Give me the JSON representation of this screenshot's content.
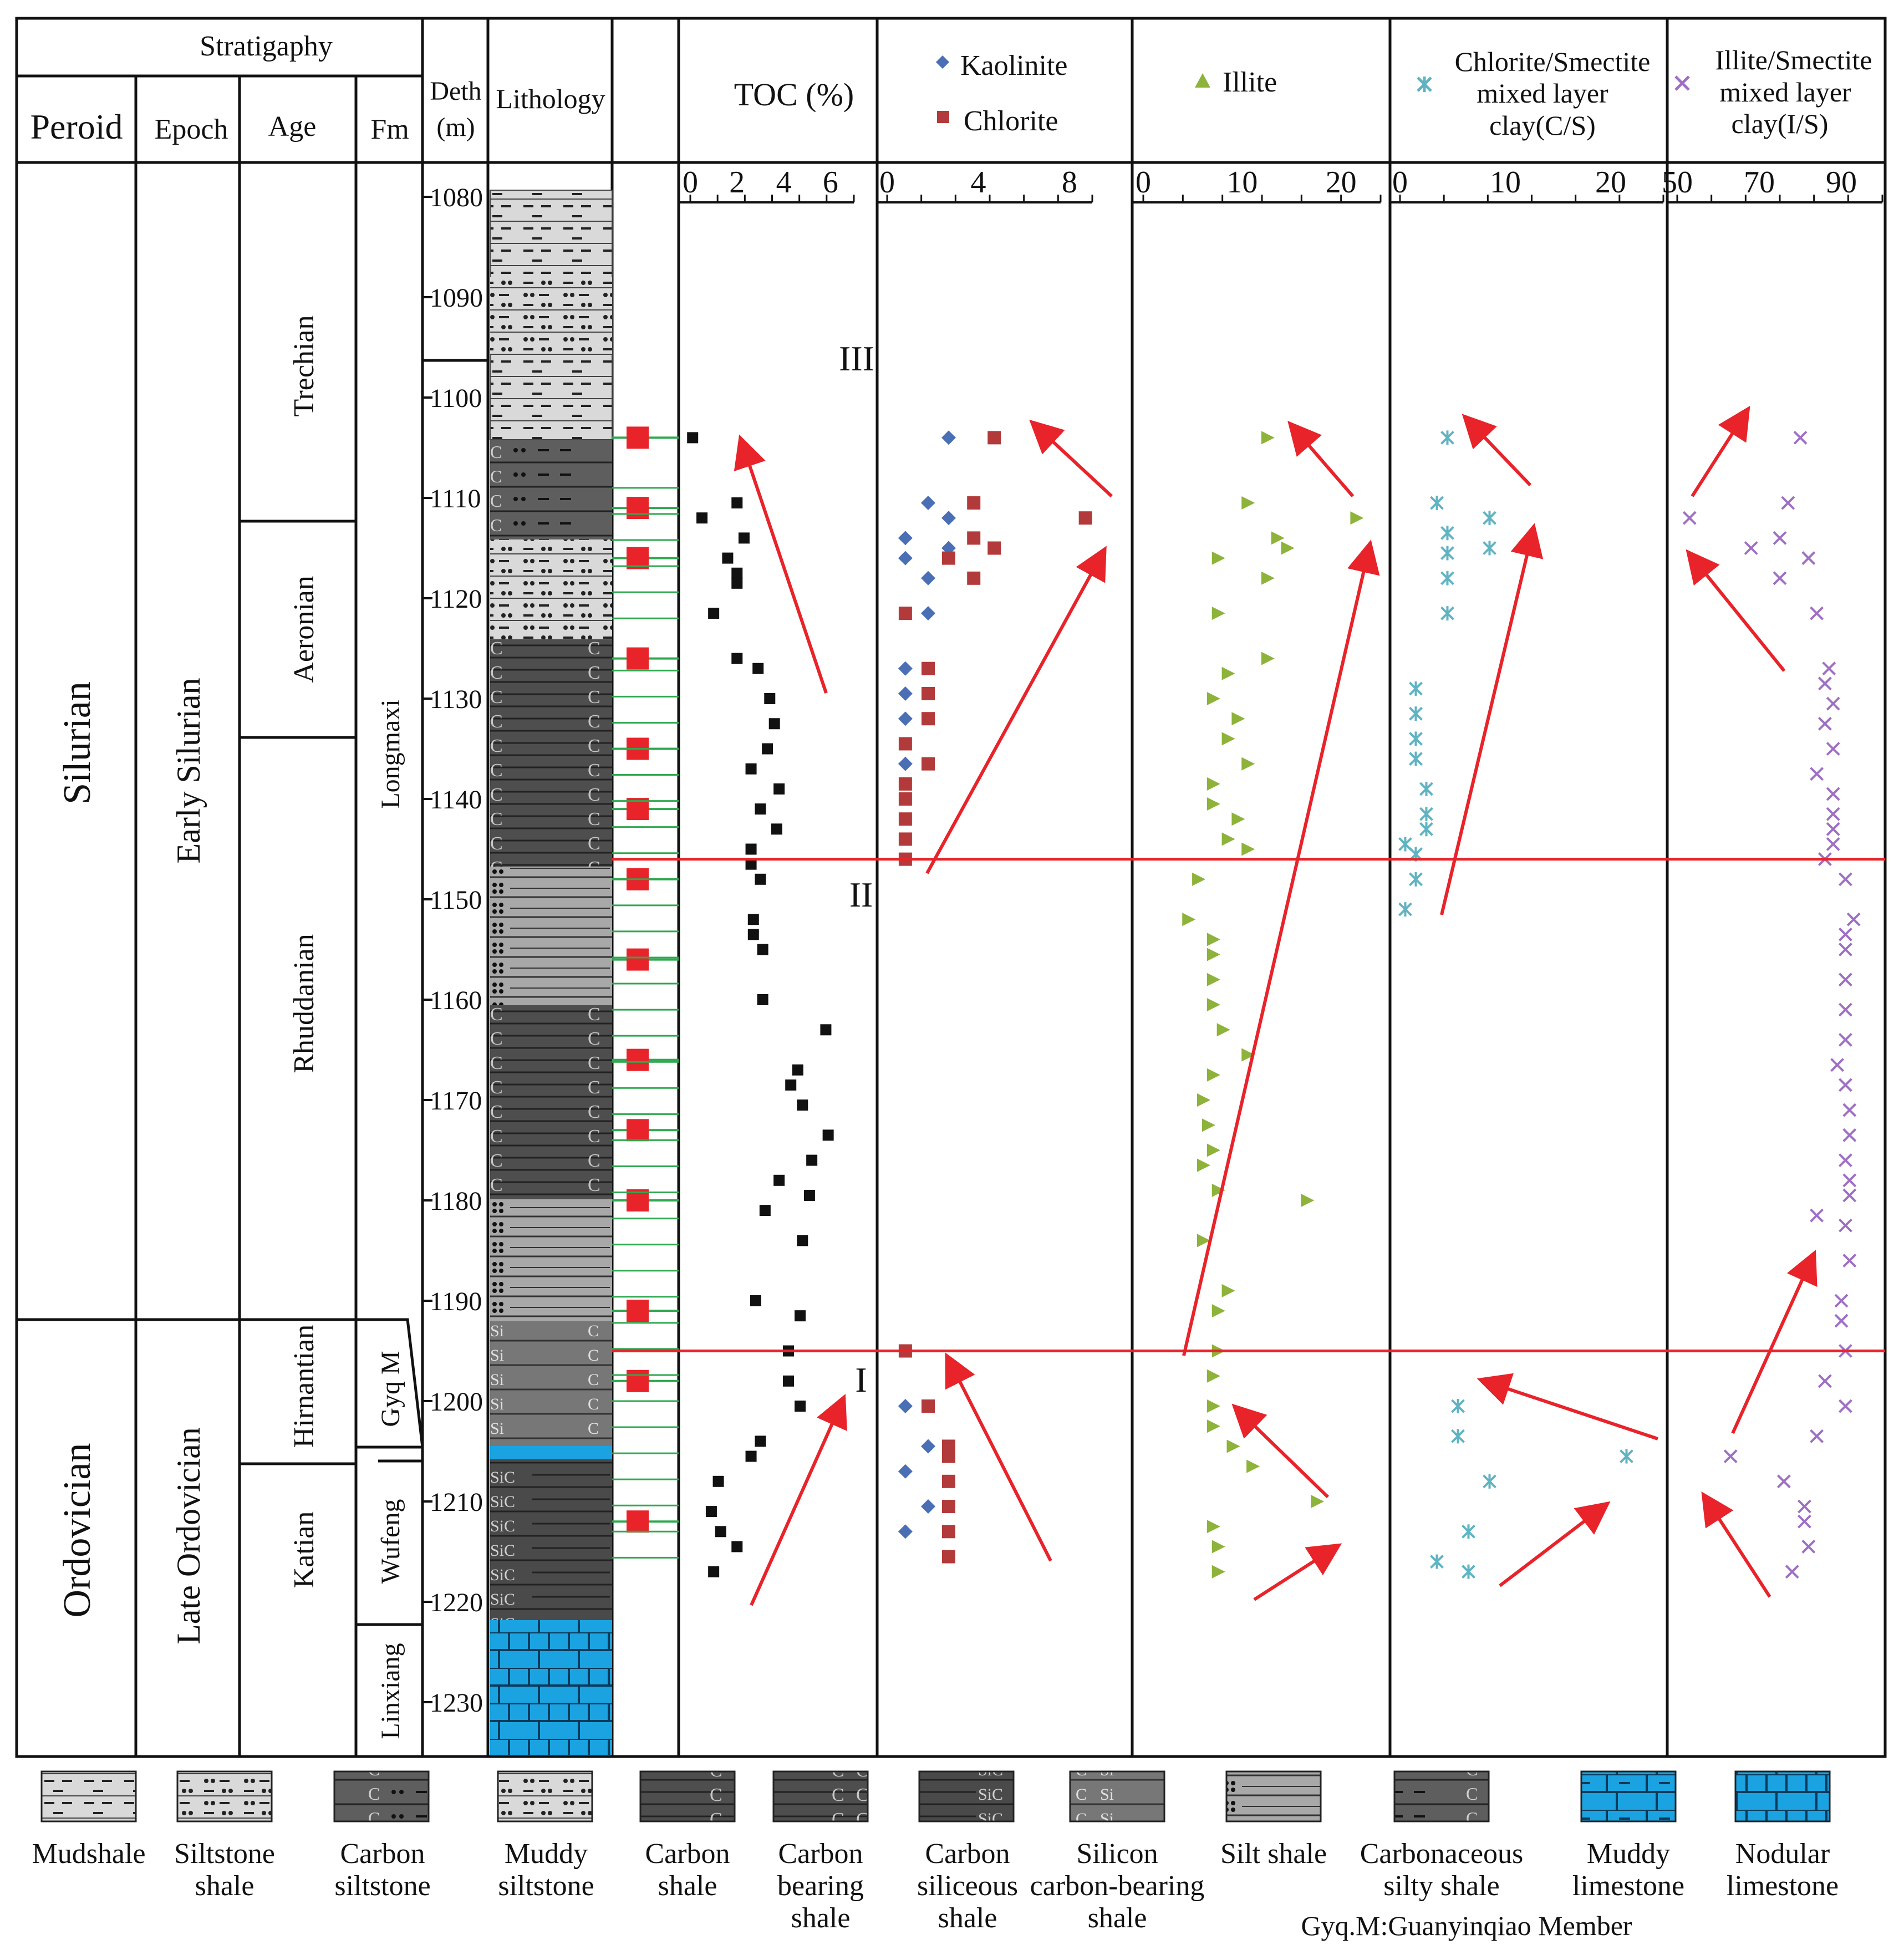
{
  "stratigraphy": {
    "header": "Stratigaphy",
    "columns": [
      "Peroid",
      "Epoch",
      "Age",
      "Fm"
    ],
    "periods": [
      "Silurian",
      "Ordovician"
    ],
    "epochs": [
      "Early Silurian",
      "Late Ordovician"
    ],
    "ages": [
      "Trechian",
      "Aeronian",
      "Rhuddanian",
      "Hirnantian",
      "Katian"
    ],
    "formations": [
      "Longmaxi",
      "Gyq M",
      "Wufeng",
      "Linxiang"
    ]
  },
  "depth_header": [
    "Deth",
    "(m)"
  ],
  "depth_ticks": [
    "1080",
    "1090",
    "1100",
    "1110",
    "1120",
    "1130",
    "1140",
    "1150",
    "1160",
    "1170",
    "1180",
    "1190",
    "1200",
    "1210",
    "1220",
    "1230"
  ],
  "lithology_header": "Lithology",
  "interval_labels": [
    "III",
    "II",
    "I"
  ],
  "panel_headers": {
    "toc": "TOC (%)",
    "kaolinite": "Kaolinite",
    "chlorite": "Chlorite",
    "illite": "Illite",
    "cs": [
      "Chlorite/Smectite",
      "mixed layer",
      "clay(C/S)"
    ],
    "is": [
      "Illite/Smectite",
      "mixed layer",
      "clay(I/S)"
    ]
  },
  "axis_ticks": {
    "toc": [
      "0",
      "2",
      "4",
      "6"
    ],
    "kc": [
      "0",
      "4",
      "8"
    ],
    "illite": [
      "0",
      "10",
      "20"
    ],
    "cs": [
      "0",
      "10",
      "20"
    ],
    "is": [
      "50",
      "70",
      "90"
    ]
  },
  "colors": {
    "toc": "#111111",
    "kaolinite": "#4a6fb5",
    "chlorite": "#b33a3a",
    "illite": "#8db33a",
    "cs": "#5fb3c2",
    "is": "#9e6fc4",
    "sample": "#e8232a",
    "arrow": "#e8232a",
    "boundary": "#e8232a",
    "limestone": "#1aa3e0",
    "tick_line": "#2fa84f"
  },
  "chart_data": {
    "type": "scatter",
    "y_axis": {
      "label": "Deth (m)",
      "range": [
        1077,
        1235
      ],
      "inverted": true
    },
    "boundaries_depth": [
      1146,
      1195
    ],
    "sample_depths": [
      1104,
      1111,
      1116,
      1126,
      1135,
      1141,
      1148,
      1156,
      1166,
      1173,
      1180,
      1191,
      1198,
      1212
    ],
    "series": [
      {
        "name": "TOC (%)",
        "xlim": [
          0,
          7
        ],
        "points": [
          [
            0.1,
            1104
          ],
          [
            0.5,
            1112
          ],
          [
            2.0,
            1110.5
          ],
          [
            2.3,
            1114
          ],
          [
            1.6,
            1116
          ],
          [
            2.0,
            1117.5
          ],
          [
            2.0,
            1118.5
          ],
          [
            1.0,
            1121.5
          ],
          [
            2.0,
            1126
          ],
          [
            2.9,
            1127
          ],
          [
            3.4,
            1130
          ],
          [
            3.6,
            1132.5
          ],
          [
            3.3,
            1135
          ],
          [
            2.6,
            1137
          ],
          [
            3.8,
            1139
          ],
          [
            3.0,
            1141
          ],
          [
            3.7,
            1143
          ],
          [
            2.6,
            1145
          ],
          [
            2.6,
            1146.5
          ],
          [
            3.0,
            1148
          ],
          [
            2.7,
            1152
          ],
          [
            2.7,
            1153.5
          ],
          [
            3.1,
            1155
          ],
          [
            3.1,
            1160
          ],
          [
            5.8,
            1163
          ],
          [
            4.6,
            1167
          ],
          [
            4.3,
            1168.5
          ],
          [
            4.8,
            1170.5
          ],
          [
            5.9,
            1173.5
          ],
          [
            5.2,
            1176
          ],
          [
            3.8,
            1178
          ],
          [
            5.1,
            1179.5
          ],
          [
            3.2,
            1181
          ],
          [
            4.8,
            1184
          ],
          [
            2.8,
            1190
          ],
          [
            4.7,
            1191.5
          ],
          [
            4.2,
            1195
          ],
          [
            4.2,
            1198
          ],
          [
            4.7,
            1200.5
          ],
          [
            3.0,
            1204
          ],
          [
            2.6,
            1205.5
          ],
          [
            1.2,
            1208
          ],
          [
            0.9,
            1211
          ],
          [
            1.3,
            1213
          ],
          [
            2.0,
            1214.5
          ],
          [
            1.0,
            1217
          ]
        ]
      },
      {
        "name": "Kaolinite",
        "xlim": [
          0,
          9
        ],
        "points": [
          [
            2.7,
            1104
          ],
          [
            1.8,
            1110.5
          ],
          [
            2.7,
            1112
          ],
          [
            0.8,
            1114
          ],
          [
            2.7,
            1115
          ],
          [
            0.8,
            1116
          ],
          [
            1.8,
            1118
          ],
          [
            1.8,
            1121.5
          ],
          [
            0.8,
            1127
          ],
          [
            0.8,
            1129.5
          ],
          [
            0.8,
            1132
          ],
          [
            0.8,
            1136.5
          ],
          [
            0.8,
            1200.5
          ],
          [
            1.8,
            1204.5
          ],
          [
            0.8,
            1207
          ],
          [
            1.8,
            1210.5
          ],
          [
            0.8,
            1213
          ]
        ]
      },
      {
        "name": "Chlorite",
        "xlim": [
          0,
          9
        ],
        "points": [
          [
            4.7,
            1104
          ],
          [
            3.8,
            1110.5
          ],
          [
            8.7,
            1112
          ],
          [
            3.8,
            1114
          ],
          [
            4.7,
            1115
          ],
          [
            2.7,
            1116
          ],
          [
            3.8,
            1118
          ],
          [
            0.8,
            1121.5
          ],
          [
            1.8,
            1127
          ],
          [
            1.8,
            1129.5
          ],
          [
            1.8,
            1132
          ],
          [
            0.8,
            1134.5
          ],
          [
            1.8,
            1136.5
          ],
          [
            0.8,
            1138.5
          ],
          [
            0.8,
            1140
          ],
          [
            0.8,
            1142
          ],
          [
            0.8,
            1144
          ],
          [
            0.8,
            1146
          ],
          [
            0.8,
            1195
          ],
          [
            1.8,
            1200.5
          ],
          [
            2.7,
            1204.5
          ],
          [
            2.7,
            1205.5
          ],
          [
            2.7,
            1208
          ],
          [
            2.7,
            1210.5
          ],
          [
            2.7,
            1213
          ],
          [
            2.7,
            1215.5
          ]
        ]
      },
      {
        "name": "Illite",
        "xlim": [
          0,
          24
        ],
        "points": [
          [
            12.5,
            1104
          ],
          [
            10.5,
            1110.5
          ],
          [
            21.5,
            1112
          ],
          [
            13.5,
            1114
          ],
          [
            14.5,
            1115
          ],
          [
            7.5,
            1116
          ],
          [
            12.5,
            1118
          ],
          [
            7.5,
            1121.5
          ],
          [
            12.5,
            1126
          ],
          [
            8.5,
            1127.5
          ],
          [
            7,
            1130
          ],
          [
            9.5,
            1132
          ],
          [
            8.5,
            1134
          ],
          [
            10.5,
            1136.5
          ],
          [
            7,
            1138.5
          ],
          [
            7,
            1140.5
          ],
          [
            9.5,
            1142
          ],
          [
            8.5,
            1144
          ],
          [
            10.5,
            1145
          ],
          [
            5.5,
            1148
          ],
          [
            4.5,
            1152
          ],
          [
            7,
            1154
          ],
          [
            7,
            1155.5
          ],
          [
            7,
            1158
          ],
          [
            7,
            1160.5
          ],
          [
            8,
            1163
          ],
          [
            10.5,
            1165.5
          ],
          [
            7,
            1167.5
          ],
          [
            6,
            1170
          ],
          [
            6.5,
            1172.5
          ],
          [
            7,
            1175
          ],
          [
            6,
            1176.5
          ],
          [
            7.5,
            1179
          ],
          [
            16.5,
            1180
          ],
          [
            6,
            1184
          ],
          [
            8.5,
            1189
          ],
          [
            7.5,
            1191
          ],
          [
            7.5,
            1195
          ],
          [
            7,
            1197.5
          ],
          [
            7,
            1200.5
          ],
          [
            7,
            1202.5
          ],
          [
            9,
            1204.5
          ],
          [
            11,
            1206.5
          ],
          [
            17.5,
            1210
          ],
          [
            7,
            1212.5
          ],
          [
            7.5,
            1214.5
          ],
          [
            7.5,
            1217
          ]
        ]
      },
      {
        "name": "Chlorite/Smectite mixed layer clay(C/S)",
        "xlim": [
          0,
          25
        ],
        "points": [
          [
            4.5,
            1104
          ],
          [
            3.5,
            1110.5
          ],
          [
            8.5,
            1112
          ],
          [
            4.5,
            1113.5
          ],
          [
            8.5,
            1115
          ],
          [
            4.5,
            1115.5
          ],
          [
            4.5,
            1118
          ],
          [
            4.5,
            1121.5
          ],
          [
            1.5,
            1129
          ],
          [
            1.5,
            1131.5
          ],
          [
            1.5,
            1134
          ],
          [
            1.5,
            1136
          ],
          [
            2.5,
            1139
          ],
          [
            2.5,
            1141.5
          ],
          [
            2.5,
            1143
          ],
          [
            0.5,
            1144.5
          ],
          [
            1.5,
            1145.5
          ],
          [
            1.5,
            1148
          ],
          [
            0.5,
            1151
          ],
          [
            5.5,
            1200.5
          ],
          [
            5.5,
            1203.5
          ],
          [
            21.5,
            1205.5
          ],
          [
            8.5,
            1208
          ],
          [
            6.5,
            1213
          ],
          [
            3.5,
            1216
          ],
          [
            6.5,
            1217
          ]
        ]
      },
      {
        "name": "Illite/Smectite mixed layer clay(I/S)",
        "xlim": [
          50,
          100
        ],
        "points": [
          [
            80,
            1104
          ],
          [
            53,
            1112
          ],
          [
            77,
            1110.5
          ],
          [
            75,
            1114
          ],
          [
            68,
            1115
          ],
          [
            82,
            1116
          ],
          [
            75,
            1118
          ],
          [
            84,
            1121.5
          ],
          [
            87,
            1127
          ],
          [
            86,
            1128.5
          ],
          [
            88,
            1130.5
          ],
          [
            86,
            1132.5
          ],
          [
            88,
            1135
          ],
          [
            84,
            1137.5
          ],
          [
            88,
            1139.5
          ],
          [
            88,
            1141.5
          ],
          [
            88,
            1143
          ],
          [
            88,
            1144.5
          ],
          [
            86,
            1146
          ],
          [
            91,
            1148
          ],
          [
            93,
            1152
          ],
          [
            91,
            1153.5
          ],
          [
            91,
            1155
          ],
          [
            91,
            1158
          ],
          [
            91,
            1161
          ],
          [
            91,
            1164
          ],
          [
            89,
            1166.5
          ],
          [
            91,
            1168.5
          ],
          [
            92,
            1171
          ],
          [
            92,
            1173.5
          ],
          [
            91,
            1176
          ],
          [
            92,
            1178
          ],
          [
            92,
            1179.5
          ],
          [
            91,
            1182.5
          ],
          [
            84,
            1181.5
          ],
          [
            92,
            1186
          ],
          [
            90,
            1190
          ],
          [
            90,
            1192
          ],
          [
            91,
            1195
          ],
          [
            86,
            1198
          ],
          [
            91,
            1200.5
          ],
          [
            84,
            1203.5
          ],
          [
            63,
            1205.5
          ],
          [
            76,
            1208
          ],
          [
            81,
            1210.5
          ],
          [
            81,
            1212
          ],
          [
            82,
            1214.5
          ],
          [
            78,
            1217
          ]
        ]
      }
    ],
    "trend_arrows": "red arrows indicate trends within intervals I, II, III"
  },
  "legend": [
    {
      "label": [
        "Mudshale"
      ]
    },
    {
      "label": [
        "Siltstone",
        "shale"
      ]
    },
    {
      "label": [
        "Carbon",
        "siltstone"
      ]
    },
    {
      "label": [
        "Muddy",
        "siltstone"
      ]
    },
    {
      "label": [
        "Carbon",
        "shale"
      ]
    },
    {
      "label": [
        "Carbon",
        "bearing",
        "shale"
      ]
    },
    {
      "label": [
        "Carbon",
        "siliceous",
        "shale"
      ]
    },
    {
      "label": [
        "Silicon",
        "carbon-bearing",
        "shale"
      ]
    },
    {
      "label": [
        "Silt shale"
      ]
    },
    {
      "label": [
        "Carbonaceous",
        "silty shale"
      ]
    },
    {
      "label": [
        "Muddy",
        "limestone"
      ]
    },
    {
      "label": [
        "Nodular",
        "limestone"
      ]
    }
  ],
  "footnote": "Gyq.M:Guanyinqiao Member"
}
